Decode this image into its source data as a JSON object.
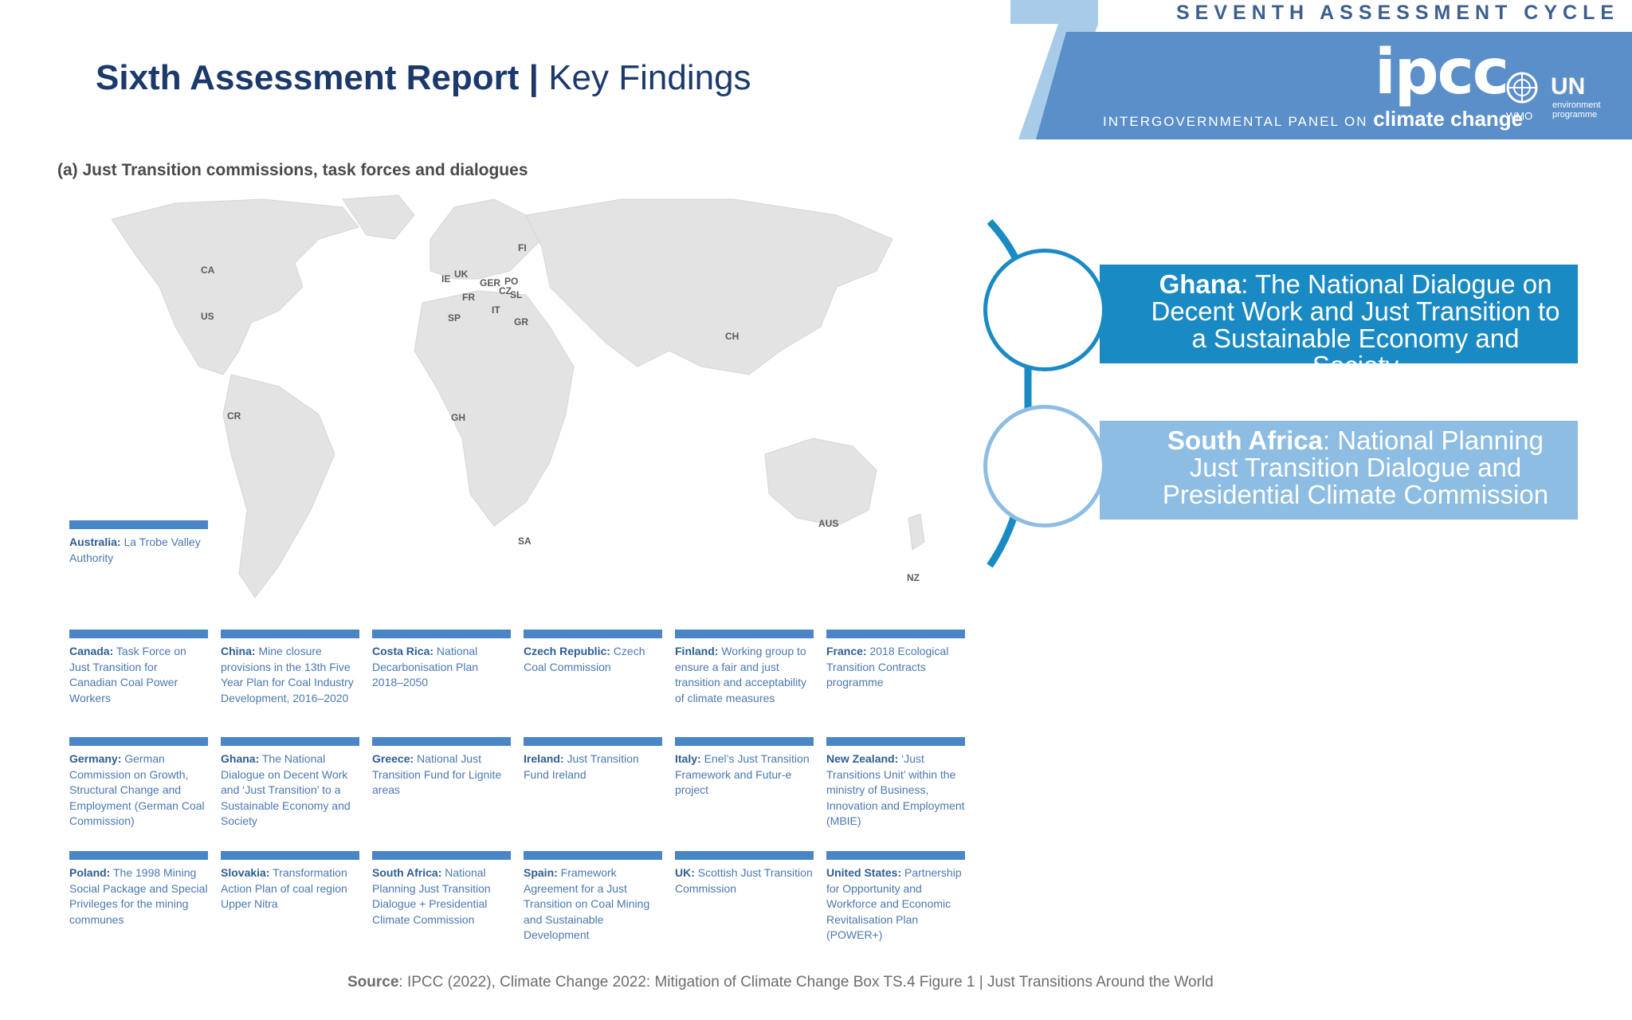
{
  "header": {
    "title_bold": "Sixth Assessment Report |",
    "title_regular": "Key Findings"
  },
  "banner": {
    "cycle": "SEVENTH ASSESSMENT CYCLE",
    "logo": "ipcc",
    "panel_prefix": "INTERGOVERNMENTAL PANEL ON",
    "panel_suffix": "climate change",
    "wmo": "WMO",
    "un": "UN",
    "unep": "environment programme",
    "accent_color": "#5b8fc9"
  },
  "figure": {
    "caption": "(a) Just Transition commissions, task forces and dialogues",
    "country_codes": [
      {
        "code": "CA"
      },
      {
        "code": "US"
      },
      {
        "code": "CR"
      },
      {
        "code": "IE"
      },
      {
        "code": "UK"
      },
      {
        "code": "FR"
      },
      {
        "code": "SP"
      },
      {
        "code": "GER"
      },
      {
        "code": "PO"
      },
      {
        "code": "CZ"
      },
      {
        "code": "SL"
      },
      {
        "code": "IT"
      },
      {
        "code": "GR"
      },
      {
        "code": "FI"
      },
      {
        "code": "GH"
      },
      {
        "code": "SA"
      },
      {
        "code": "CH"
      },
      {
        "code": "AUS"
      },
      {
        "code": "NZ"
      }
    ],
    "cards": [
      {
        "country": "Australia:",
        "text": "La Trobe Valley Authority"
      },
      {
        "country": "Canada:",
        "text": "Task Force on Just Transition for Canadian Coal Power Workers"
      },
      {
        "country": "China:",
        "text": "Mine closure provisions in the 13th Five Year Plan for Coal Industry Development, 2016–2020"
      },
      {
        "country": "Costa Rica:",
        "text": "National Decarbonisation Plan 2018–2050"
      },
      {
        "country": "Czech Republic:",
        "text": "Czech Coal Commission"
      },
      {
        "country": "Finland:",
        "text": "Working group to ensure a fair and just transition and acceptability of climate measures"
      },
      {
        "country": "France:",
        "text": "2018 Ecological Transition Contracts programme"
      },
      {
        "country": "Germany:",
        "text": "German Commission on Growth, Structural Change and Employment (German Coal Commission)"
      },
      {
        "country": "Ghana:",
        "text": "The National Dialogue on Decent Work and ‘Just Transition’ to a Sustainable Economy and Society"
      },
      {
        "country": "Greece:",
        "text": "National Just Transition Fund for Lignite areas"
      },
      {
        "country": "Ireland:",
        "text": "Just Transition Fund Ireland"
      },
      {
        "country": "Italy:",
        "text": "Enel’s Just Transition Framework and Futur-e project"
      },
      {
        "country": "New Zealand:",
        "text": "‘Just Transitions Unit’ within the ministry of Business, Innovation and Employment (MBIE)"
      },
      {
        "country": "Poland:",
        "text": "The 1998 Mining Social Package and Special Privileges for the mining communes"
      },
      {
        "country": "Slovakia:",
        "text": "Transformation Action Plan of coal region Upper Nitra"
      },
      {
        "country": "South Africa:",
        "text": "National Planning Just Transition Dialogue + Presidential Climate Commission"
      },
      {
        "country": "Spain:",
        "text": "Framework Agreement for a Just Transition on Coal Mining and Sustainable Development"
      },
      {
        "country": "UK:",
        "text": "Scottish Just Transition Commission"
      },
      {
        "country": "United States:",
        "text": "Partnership for Opportunity and Workforce and Economic Revitalisation Plan (POWER+)"
      }
    ]
  },
  "callouts": [
    {
      "country": "Ghana",
      "text": ": The National Dialogue on Decent Work and Just Transition to a Sustainable Economy and Society",
      "color": "#1a8ac4"
    },
    {
      "country": "South Africa",
      "text": ": National Planning Just Transition Dialogue and Presidential Climate Commission",
      "color": "#8dbde3"
    }
  ],
  "source": {
    "label": "Source",
    "text": ": IPCC (2022), Climate Change 2022: Mitigation of Climate Change Box TS.4 Figure 1 | Just Transitions Around the World"
  }
}
